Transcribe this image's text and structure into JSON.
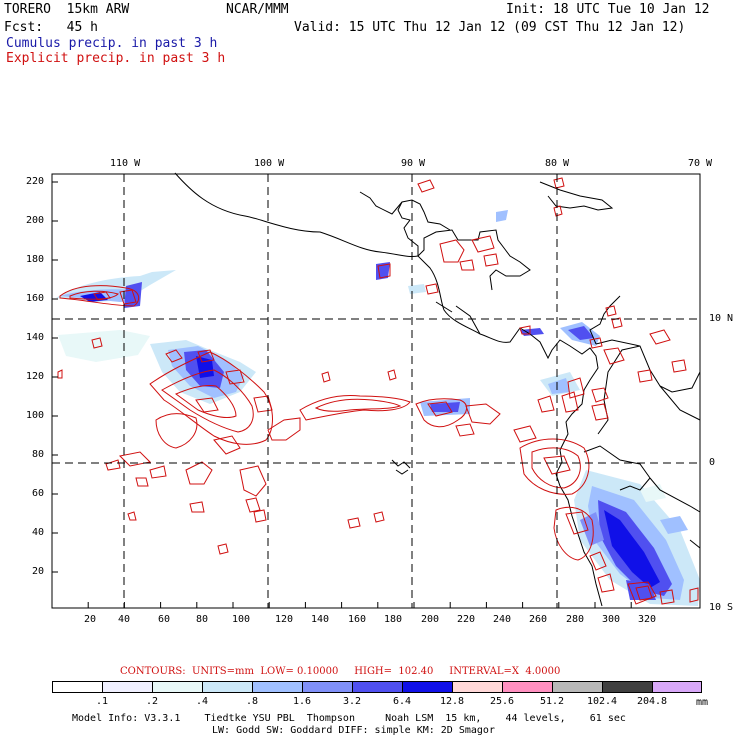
{
  "header": {
    "model": "TORERO  15km ARW",
    "org": "NCAR/MMM",
    "init": "Init: 18 UTC Tue 10 Jan 12",
    "fcst": "Fcst:   45 h",
    "valid": "Valid: 15 UTC Thu 12 Jan 12 (09 CST Thu 12 Jan 12)",
    "cumulus": "Cumulus precip. in past 3 h",
    "explicit": "Explicit precip. in past 3 h"
  },
  "axes": {
    "top_lon": [
      "110 W",
      "100 W",
      "90 W",
      "80 W",
      "70 W"
    ],
    "right_lat": [
      "10 N",
      "0",
      "10 S"
    ],
    "y_ticks": [
      "220",
      "200",
      "180",
      "160",
      "140",
      "120",
      "100",
      "80",
      "60",
      "40",
      "20"
    ],
    "x_ticks": [
      "20",
      "40",
      "60",
      "80",
      "100",
      "120",
      "140",
      "160",
      "180",
      "200",
      "220",
      "240",
      "260",
      "280",
      "300",
      "320"
    ]
  },
  "contours_label": "CONTOURS:  UNITS=mm  LOW= 0.10000     HIGH=  102.40     INTERVAL=X  4.0000",
  "colorbar": {
    "labels": [
      ".1",
      ".2",
      ".4",
      ".8",
      "1.6",
      "3.2",
      "6.4",
      "12.8",
      "25.6",
      "51.2",
      "102.4",
      "204.8"
    ],
    "unit": "mm",
    "colors": [
      "#ffffff",
      "#f0f0ff",
      "#e8f8f8",
      "#cce8f8",
      "#a0c0ff",
      "#8090f8",
      "#5050f0",
      "#1010e8",
      "#ffd8d8",
      "#ff90c0",
      "#b8b8b8",
      "#404040",
      "#d8a8f8"
    ]
  },
  "footer": {
    "line1": "Model Info: V3.3.1    Tiedtke YSU PBL  Thompson     Noah LSM  15 km,    44 levels,    61 sec",
    "line2": "LW: Godd SW: Goddard DIFF: simple KM: 2D Smagor"
  },
  "map_colors": {
    "coast": "#000000",
    "grid": "#000000",
    "explicit": "#d01010",
    "cumulus": "#2020d0"
  }
}
